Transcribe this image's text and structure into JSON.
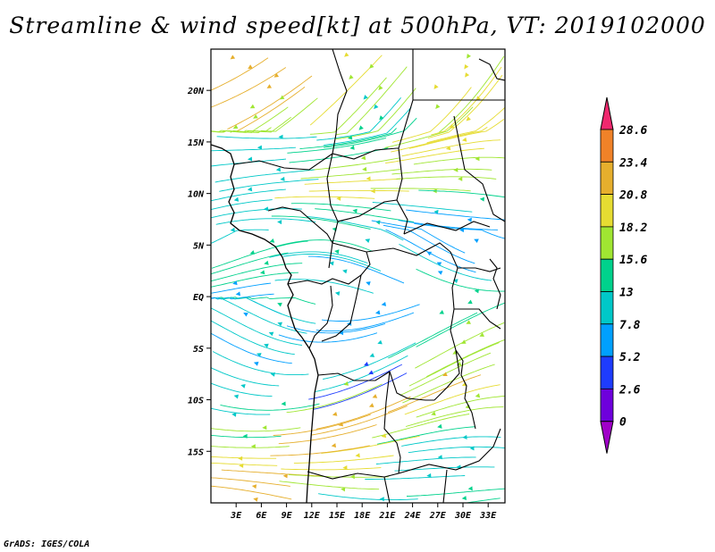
{
  "title": "Streamline & wind speed[kt] at 500hPa, VT: 2019102000",
  "credit": "GrADS: IGES/COLA",
  "map": {
    "lat_range": [
      -20,
      24
    ],
    "lon_range": [
      0,
      35
    ],
    "lat_labels": [
      {
        "lat": 20,
        "text": "20N"
      },
      {
        "lat": 15,
        "text": "15N"
      },
      {
        "lat": 10,
        "text": "10N"
      },
      {
        "lat": 5,
        "text": "5N"
      },
      {
        "lat": 0,
        "text": "EQ"
      },
      {
        "lat": -5,
        "text": "5S"
      },
      {
        "lat": -10,
        "text": "10S"
      },
      {
        "lat": -15,
        "text": "15S"
      }
    ],
    "lon_labels": [
      {
        "lon": 3,
        "text": "3E"
      },
      {
        "lon": 6,
        "text": "6E"
      },
      {
        "lon": 9,
        "text": "9E"
      },
      {
        "lon": 12,
        "text": "12E"
      },
      {
        "lon": 15,
        "text": "15E"
      },
      {
        "lon": 18,
        "text": "18E"
      },
      {
        "lon": 21,
        "text": "21E"
      },
      {
        "lon": 24,
        "text": "24E"
      },
      {
        "lon": 27,
        "text": "27E"
      },
      {
        "lon": 30,
        "text": "30E"
      },
      {
        "lon": 33,
        "text": "33E"
      }
    ]
  },
  "colorbar": {
    "labels": [
      "0",
      "2.6",
      "5.2",
      "7.8",
      "13",
      "15.6",
      "18.2",
      "20.8",
      "23.4",
      "28.6"
    ],
    "colors": [
      "#a000c8",
      "#6e00dc",
      "#1e3cff",
      "#00a0ff",
      "#00c8c8",
      "#00d28c",
      "#a0e632",
      "#e6dc32",
      "#e6af2d",
      "#f08228",
      "#f0286e"
    ]
  }
}
